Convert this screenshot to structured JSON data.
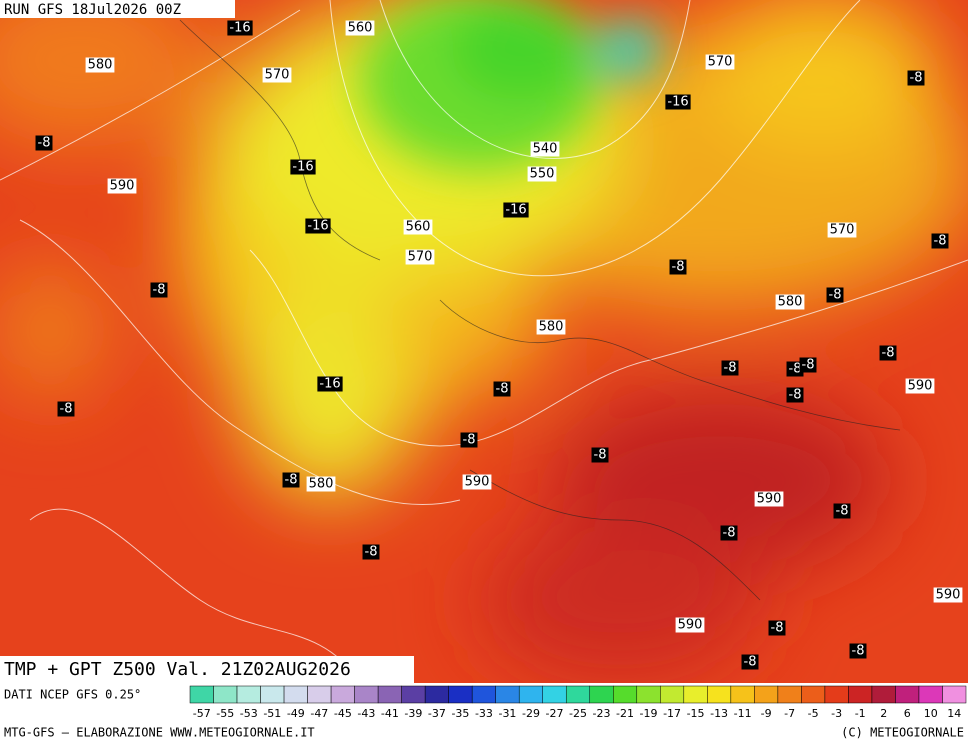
{
  "header": {
    "run": "RUN GFS 18Jul2026 00Z"
  },
  "map": {
    "temperature_labels": [
      "-16",
      "-8",
      "-16",
      "-8",
      "-16",
      "-16",
      "-16",
      "-8",
      "-8",
      "-8",
      "-8",
      "-8",
      "-8",
      "-8",
      "-8",
      "-16",
      "-8",
      "-8",
      "-8",
      "-8",
      "-8",
      "-8",
      "-8",
      "-8",
      "-8",
      "-8",
      "-8",
      "-8"
    ],
    "height_labels": [
      "560",
      "580",
      "570",
      "570",
      "540",
      "550",
      "590",
      "560",
      "570",
      "570",
      "580",
      "580",
      "590",
      "580",
      "590",
      "590",
      "590",
      "590"
    ]
  },
  "footer": {
    "title": "TMP + GPT Z500 Val. 21Z02AUG2026",
    "source": "DATI NCEP GFS 0.25°",
    "credit_left": "MTG-GFS — ELABORAZIONE WWW.METEOGIORNALE.IT",
    "credit_right": "(C) METEOGIORNALE"
  },
  "legend": {
    "labels": [
      "-57",
      "-55",
      "-53",
      "-51",
      "-49",
      "-47",
      "-45",
      "-43",
      "-41",
      "-39",
      "-37",
      "-35",
      "-33",
      "-31",
      "-29",
      "-27",
      "-25",
      "-23",
      "-21",
      "-19",
      "-17",
      "-15",
      "-13",
      "-11",
      "-9",
      "-7",
      "-5",
      "-3",
      "-1",
      "2",
      "6",
      "10",
      "14"
    ],
    "colors": [
      "#3fd6a6",
      "#8ee6c8",
      "#b5ece0",
      "#c9e8ec",
      "#d3dcee",
      "#d8cdea",
      "#c9a9dc",
      "#a985c8",
      "#8a64b4",
      "#5b3fa4",
      "#2c2aa0",
      "#1a2fc4",
      "#1f55dc",
      "#2a86e6",
      "#2fb4ee",
      "#33d2e4",
      "#2fd89c",
      "#2ed450",
      "#56dc2c",
      "#8ce22e",
      "#c2ea30",
      "#e8ee2c",
      "#f6e21e",
      "#f6c21a",
      "#f4a21a",
      "#f0801a",
      "#ec5e1a",
      "#e43c1a",
      "#cc2424",
      "#b01c3a",
      "#c0207c",
      "#dc38b8",
      "#f090e0"
    ]
  }
}
